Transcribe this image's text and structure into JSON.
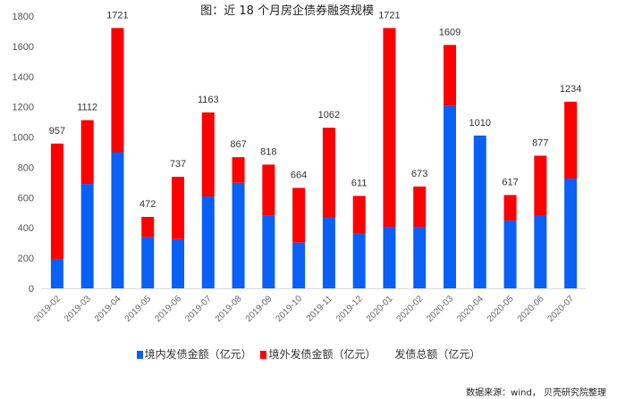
{
  "chart_data": {
    "type": "bar",
    "stacked": true,
    "title": "图：近 18 个月房企债券融资规模",
    "categories": [
      "2019-02",
      "2019-03",
      "2019-04",
      "2019-05",
      "2019-06",
      "2019-07",
      "2019-08",
      "2019-09",
      "2019-10",
      "2019-11",
      "2019-12",
      "2020-01",
      "2020-02",
      "2020-03",
      "2020-04",
      "2020-05",
      "2020-06",
      "2020-07"
    ],
    "series": [
      {
        "name": "境内发债金额（亿元）",
        "color": "#0a5ff5",
        "values": [
          195,
          690,
          900,
          340,
          326,
          608,
          698,
          480,
          303,
          466,
          366,
          407,
          407,
          1206,
          1010,
          449,
          484,
          726
        ]
      },
      {
        "name": "境外发债金额（亿元）",
        "color": "#ff0000",
        "values": [
          762,
          422,
          821,
          132,
          411,
          555,
          169,
          338,
          361,
          596,
          245,
          1314,
          266,
          403,
          0,
          168,
          393,
          508
        ]
      }
    ],
    "totals_name": "发债总额（亿元）",
    "totals": [
      957,
      1112,
      1721,
      472,
      737,
      1163,
      867,
      818,
      664,
      1062,
      611,
      1721,
      673,
      1609,
      1010,
      617,
      877,
      1234
    ],
    "ylim": [
      0,
      1800
    ],
    "yticks": [
      0,
      200,
      400,
      600,
      800,
      1000,
      1200,
      1400,
      1600,
      1800
    ],
    "grid": false,
    "legend_position": "bottom",
    "source": "数据来源：wind， 贝壳研究院整理"
  }
}
